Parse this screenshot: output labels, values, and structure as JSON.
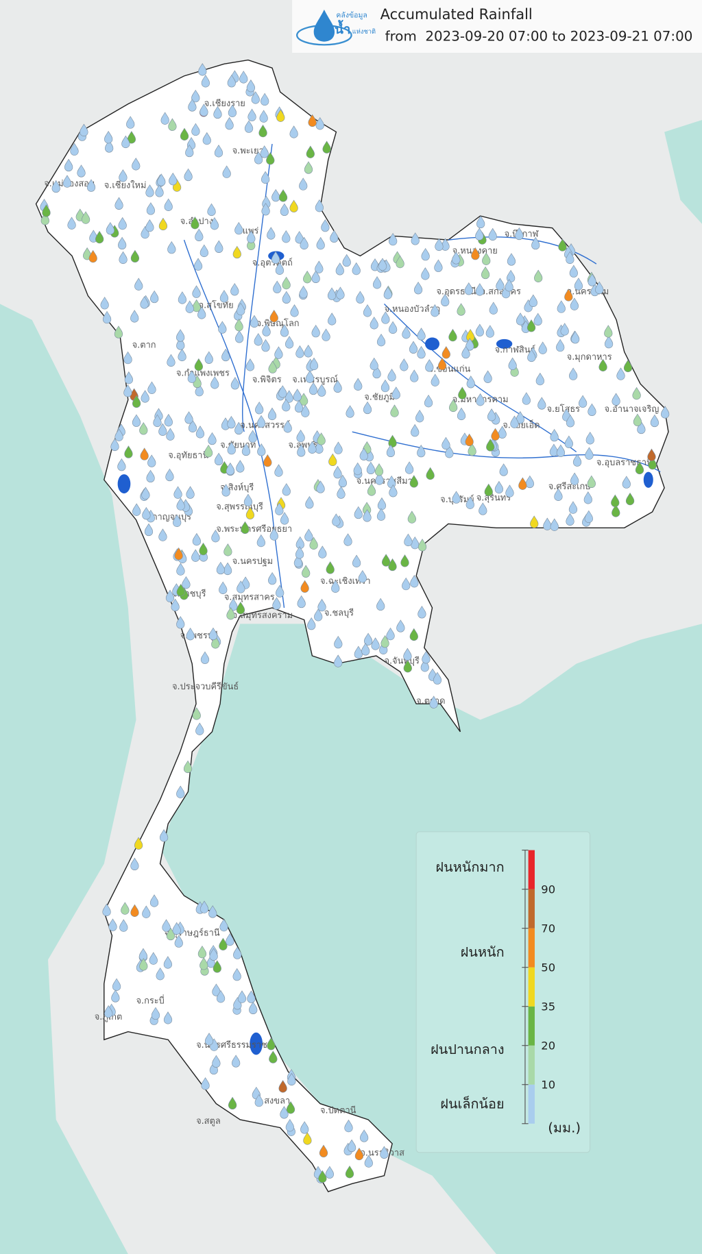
{
  "header": {
    "logo": {
      "line1": "คลังข้อมูล",
      "line2": "น้ำ",
      "line3": "แห่งชาติ"
    },
    "title": "Accumulated Rainfall",
    "subtitle": "from  2023-09-20 07:00 to 2023-09-21 07:00"
  },
  "map": {
    "province_labels": [
      "จ.เชียงราย",
      "จ.แม่ฮ่องสอน",
      "จ.เชียงใหม่",
      "จ.พะเยา",
      "จ.ลำปาง",
      "จ.แพร่",
      "จ.อุตรดิตถ์",
      "จ.สุโขทัย",
      "จ.พิษณุโลก",
      "จ.ตาก",
      "จ.กำแพงเพชร",
      "จ.พิจิตร",
      "จ.เพชรบูรณ์",
      "จ.นครสวรรค์",
      "จ.อุทัยธานี",
      "จ.ชัยนาท",
      "จ.ลพบุรี",
      "จ.สิงห์บุรี",
      "จ.สุพรรณบุรี",
      "จ.กาญจนบุรี",
      "จ.พระนครศรีอยุธยา",
      "จ.นครปฐม",
      "จ.ราชบุรี",
      "จ.สมุทรสาคร",
      "จ.สมุทรสงคราม",
      "จ.เพชรบุรี",
      "จ.ประจวบคีรีขันธ์",
      "จ.บึงกาฬ",
      "จ.หนองคาย",
      "จ.อุดรธานี",
      "จ.สกลนคร",
      "จ.นครพนม",
      "จ.หนองบัวลำภู",
      "จ.กาฬสินธุ์",
      "จ.มุกดาหาร",
      "จ.ขอนแก่น",
      "จ.ชัยภูมิ",
      "จ.มหาสารคาม",
      "จ.ร้อยเอ็ด",
      "จ.ยโสธร",
      "จ.อำนาจเจริญ",
      "จ.อุบลราชธานี",
      "จ.ศรีสะเกษ",
      "จ.สุรินทร์",
      "จ.บุรีรัมย์",
      "จ.นครราชสีมา",
      "จ.ฉะเชิงเทรา",
      "จ.ชลบุรี",
      "จ.จันทบุรี",
      "จ.ตราด",
      "จ.สุราษฎร์ธานี",
      "จ.กระบี่",
      "จ.ภูเก็ต",
      "จ.นครศรีธรรมราช",
      "จ.สงขลา",
      "จ.สตูล",
      "จ.ปัตตานี",
      "จ.นราธิวาส"
    ]
  },
  "legend": {
    "categories": [
      "ฝนหนักมาก",
      "ฝนหนัก",
      "ฝนปานกลาง",
      "ฝนเล็กน้อย"
    ],
    "ticks": [
      10,
      20,
      35,
      50,
      70,
      90
    ],
    "colors": [
      "#a9cdee",
      "#a9d9a8",
      "#6ab545",
      "#f0d820",
      "#f28b20",
      "#c0692c",
      "#e8262a"
    ],
    "unit": "(มม.)"
  }
}
